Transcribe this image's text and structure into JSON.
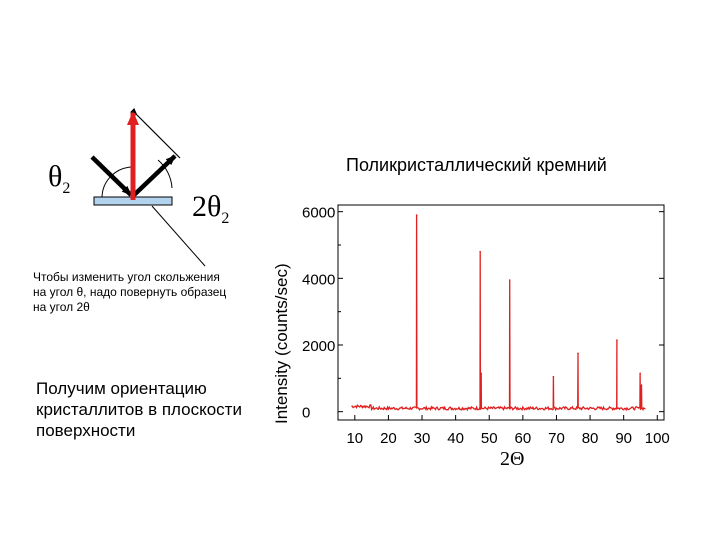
{
  "diagram": {
    "theta_symbol": "θ",
    "theta_sub": "2",
    "two_theta_prefix": "2θ",
    "two_theta_sub": "2",
    "note_small": "Чтобы изменить угол скольжения на угол θ, надо повернуть образец на угол 2θ",
    "note_big": "Получим ориентацию кристаллитов в плоскости поверхности",
    "colors": {
      "arrow_red": "#e02020",
      "sample_fill": "#b3d2ee"
    }
  },
  "chart_data": {
    "type": "line",
    "title": "Поликристаллический кремний",
    "xlabel": "2Θ",
    "ylabel": "Intensity (counts/sec)",
    "x_ticks": [
      "10",
      "20",
      "30",
      "40",
      "50",
      "60",
      "70",
      "80",
      "90",
      "100"
    ],
    "y_ticks": [
      "0",
      "2000",
      "4000",
      "6000"
    ],
    "xlim": [
      5,
      102
    ],
    "ylim": [
      -250,
      6200
    ],
    "grid": false,
    "series": [
      {
        "color": "#e02020",
        "baseline": 100,
        "peaks": [
          {
            "x": 28.4,
            "y": 5900
          },
          {
            "x": 47.3,
            "y": 4800
          },
          {
            "x": 47.6,
            "y": 1150
          },
          {
            "x": 56.1,
            "y": 3950
          },
          {
            "x": 69.1,
            "y": 1050
          },
          {
            "x": 76.4,
            "y": 1750
          },
          {
            "x": 88.0,
            "y": 2150
          },
          {
            "x": 94.9,
            "y": 1150
          },
          {
            "x": 95.3,
            "y": 800
          }
        ]
      }
    ]
  }
}
